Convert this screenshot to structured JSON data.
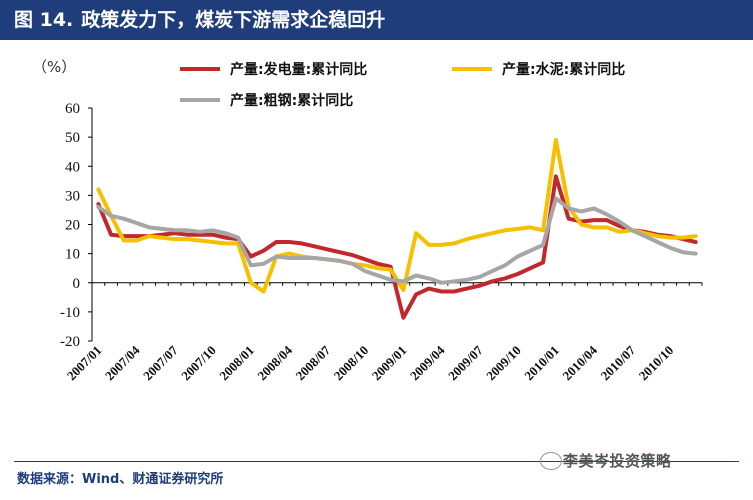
{
  "header": {
    "figure_label": "图 14.",
    "title": "政策发力下，煤炭下游需求企稳回升"
  },
  "chart_data": {
    "type": "line",
    "unit": "（%）",
    "ylim": [
      -20,
      60
    ],
    "yticks": [
      -20,
      -10,
      0,
      10,
      20,
      30,
      40,
      50,
      60
    ],
    "ytick_labels": [
      "-20",
      "-10",
      "0",
      "10",
      "20",
      "30",
      "40",
      "50",
      "60"
    ],
    "xtick_labels": [
      "2007/01",
      "2007/04",
      "2007/07",
      "2007/10",
      "2008/01",
      "2008/04",
      "2008/07",
      "2008/10",
      "2009/01",
      "2009/04",
      "2009/07",
      "2009/10",
      "2010/01",
      "2010/04",
      "2010/07",
      "2010/10"
    ],
    "x": [
      "2007/01",
      "2007/02",
      "2007/03",
      "2007/04",
      "2007/05",
      "2007/06",
      "2007/07",
      "2007/08",
      "2007/09",
      "2007/10",
      "2007/11",
      "2007/12",
      "2008/01",
      "2008/02",
      "2008/03",
      "2008/04",
      "2008/05",
      "2008/06",
      "2008/07",
      "2008/08",
      "2008/09",
      "2008/10",
      "2008/11",
      "2008/12",
      "2009/01",
      "2009/02",
      "2009/03",
      "2009/04",
      "2009/05",
      "2009/06",
      "2009/07",
      "2009/08",
      "2009/09",
      "2009/10",
      "2009/11",
      "2009/12",
      "2010/01",
      "2010/02",
      "2010/03",
      "2010/04",
      "2010/05",
      "2010/06",
      "2010/07",
      "2010/08",
      "2010/09",
      "2010/10",
      "2010/11",
      "2010/12"
    ],
    "series": [
      {
        "name": "产量:发电量:累计同比",
        "color": "#c0282d",
        "values": [
          27,
          16.5,
          16,
          16,
          16,
          16.5,
          17,
          16.5,
          16.5,
          16.5,
          15.5,
          15,
          9,
          11,
          14,
          14,
          13.5,
          12.5,
          11.5,
          10.5,
          9.5,
          8,
          6.5,
          5.5,
          -12,
          -4,
          -2,
          -3,
          -3,
          -2,
          -1,
          0.5,
          1.5,
          3,
          5,
          7,
          36.5,
          22,
          21,
          21.5,
          21.5,
          19.5,
          18,
          17.5,
          16.5,
          16,
          15,
          14
        ]
      },
      {
        "name": "产量:水泥:累计同比",
        "color": "#f5c000",
        "values": [
          32,
          23,
          14.5,
          14.5,
          16,
          15.5,
          15,
          15,
          14.5,
          14,
          13.5,
          13.5,
          0,
          -3,
          9,
          10,
          9,
          8.5,
          8,
          7.5,
          6.5,
          6,
          5,
          4.5,
          -2.5,
          17,
          13,
          13,
          13.5,
          15,
          16,
          17,
          18,
          18.5,
          19,
          18,
          49,
          26,
          20,
          19,
          19,
          17.5,
          18,
          17,
          16,
          15.5,
          15.5,
          16
        ]
      },
      {
        "name": "产量:粗钢:累计同比",
        "color": "#a6a6a6",
        "values": [
          26,
          23,
          22,
          20.5,
          19,
          18.5,
          18,
          18,
          17.5,
          18,
          17,
          15.5,
          6,
          6.5,
          9,
          8.5,
          8.5,
          8.5,
          8,
          7.5,
          6.5,
          4,
          2.5,
          1,
          0.5,
          2.5,
          1.5,
          0,
          0.5,
          1,
          2,
          4,
          6,
          9,
          11,
          13,
          29,
          25.5,
          24.5,
          25.5,
          23.5,
          21,
          18,
          16,
          14,
          12,
          10.5,
          10
        ]
      }
    ]
  },
  "footer": {
    "source": "数据来源：Wind、财通证券研究所",
    "watermark": "李美岑投资策略"
  }
}
